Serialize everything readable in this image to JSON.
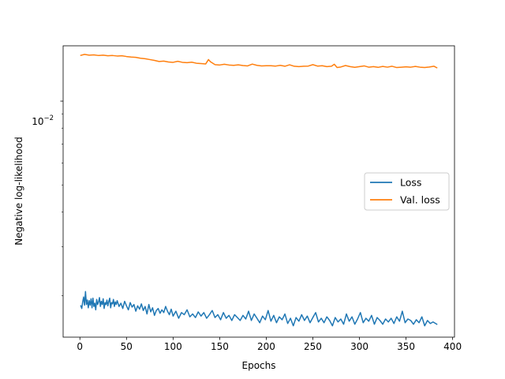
{
  "chart_data": {
    "type": "line",
    "xlabel": "Epochs",
    "ylabel": "Negative log-likelihood",
    "yscale": "log",
    "xlim": [
      -18,
      402
    ],
    "ylim": [
      0.00142,
      0.0158
    ],
    "x_ticks": [
      0,
      50,
      100,
      150,
      200,
      250,
      300,
      350,
      400
    ],
    "x_tick_labels": [
      "0",
      "50",
      "100",
      "150",
      "200",
      "250",
      "300",
      "350",
      "400"
    ],
    "y_ticks": [
      0.01
    ],
    "y_tick_labels": {
      "base": "10",
      "exponent": "−2"
    },
    "legend": {
      "position": "center-right",
      "entries": [
        "Loss",
        "Val. loss"
      ]
    },
    "grid": false,
    "series": [
      {
        "name": "Loss",
        "color": "#1f77b4",
        "x": [
          1,
          2,
          3,
          4,
          5,
          6,
          7,
          8,
          9,
          10,
          11,
          12,
          13,
          14,
          15,
          16,
          17,
          18,
          19,
          20,
          21,
          22,
          23,
          24,
          25,
          26,
          27,
          28,
          29,
          30,
          31,
          32,
          33,
          34,
          35,
          36,
          37,
          38,
          39,
          40,
          42,
          44,
          46,
          48,
          50,
          52,
          54,
          56,
          58,
          60,
          62,
          64,
          66,
          68,
          70,
          72,
          74,
          76,
          78,
          80,
          82,
          84,
          86,
          88,
          90,
          92,
          94,
          96,
          98,
          100,
          103,
          106,
          109,
          112,
          115,
          118,
          121,
          124,
          127,
          130,
          133,
          136,
          139,
          142,
          145,
          148,
          151,
          154,
          157,
          160,
          163,
          166,
          169,
          172,
          175,
          178,
          181,
          184,
          187,
          190,
          193,
          196,
          199,
          202,
          205,
          208,
          211,
          214,
          217,
          220,
          223,
          226,
          229,
          232,
          235,
          238,
          241,
          244,
          247,
          250,
          253,
          256,
          259,
          262,
          265,
          268,
          271,
          274,
          277,
          280,
          283,
          286,
          289,
          292,
          295,
          298,
          301,
          304,
          307,
          310,
          313,
          316,
          319,
          322,
          325,
          328,
          331,
          334,
          337,
          340,
          343,
          346,
          349,
          352,
          355,
          358,
          361,
          364,
          367,
          370,
          373,
          376,
          379,
          383
        ],
        "y": [
          0.00184,
          0.0018,
          0.0019,
          0.00198,
          0.00185,
          0.00207,
          0.00186,
          0.00193,
          0.00181,
          0.00192,
          0.00185,
          0.00195,
          0.00181,
          0.00196,
          0.00183,
          0.00188,
          0.00178,
          0.00194,
          0.00186,
          0.0019,
          0.00197,
          0.00183,
          0.00191,
          0.00186,
          0.00195,
          0.0018,
          0.00189,
          0.00186,
          0.00193,
          0.00184,
          0.00191,
          0.00196,
          0.00181,
          0.00189,
          0.00187,
          0.00194,
          0.00183,
          0.0019,
          0.00186,
          0.00192,
          0.00183,
          0.00188,
          0.0018,
          0.00191,
          0.00184,
          0.00178,
          0.00189,
          0.00182,
          0.00186,
          0.00176,
          0.00184,
          0.00179,
          0.00187,
          0.00177,
          0.00183,
          0.00172,
          0.00186,
          0.00175,
          0.00181,
          0.0017,
          0.00177,
          0.0018,
          0.00173,
          0.00178,
          0.00174,
          0.00183,
          0.00176,
          0.00171,
          0.00179,
          0.00169,
          0.00176,
          0.00166,
          0.00174,
          0.00171,
          0.00178,
          0.00168,
          0.00172,
          0.00167,
          0.00175,
          0.00169,
          0.00174,
          0.00166,
          0.00171,
          0.00177,
          0.00167,
          0.00171,
          0.00164,
          0.00174,
          0.00166,
          0.0017,
          0.00163,
          0.00171,
          0.00167,
          0.00163,
          0.0017,
          0.00165,
          0.00176,
          0.00163,
          0.00172,
          0.00166,
          0.0016,
          0.00169,
          0.00164,
          0.00177,
          0.00162,
          0.0017,
          0.0016,
          0.00168,
          0.00164,
          0.00172,
          0.00159,
          0.00166,
          0.00156,
          0.00167,
          0.00162,
          0.00171,
          0.00163,
          0.00169,
          0.0016,
          0.00167,
          0.00174,
          0.00161,
          0.00166,
          0.0016,
          0.00168,
          0.00163,
          0.00156,
          0.00167,
          0.00161,
          0.00165,
          0.00158,
          0.00172,
          0.00162,
          0.00168,
          0.00158,
          0.00165,
          0.00174,
          0.0016,
          0.00166,
          0.00162,
          0.0017,
          0.00158,
          0.00167,
          0.00163,
          0.00158,
          0.00165,
          0.00161,
          0.00166,
          0.00159,
          0.00168,
          0.00162,
          0.00176,
          0.0016,
          0.00165,
          0.00163,
          0.00158,
          0.00164,
          0.0016,
          0.00168,
          0.00156,
          0.00163,
          0.00159,
          0.00161,
          0.00158
        ],
        "line_width": 1.5
      },
      {
        "name": "Val. loss",
        "color": "#ff7f0e",
        "x": [
          1,
          5,
          10,
          15,
          20,
          25,
          30,
          35,
          40,
          45,
          50,
          55,
          60,
          65,
          70,
          75,
          80,
          85,
          90,
          95,
          100,
          105,
          110,
          115,
          120,
          125,
          130,
          135,
          138,
          140,
          145,
          150,
          155,
          160,
          165,
          170,
          175,
          180,
          185,
          190,
          195,
          200,
          205,
          210,
          215,
          220,
          225,
          230,
          235,
          240,
          245,
          250,
          255,
          260,
          265,
          270,
          273,
          276,
          280,
          285,
          290,
          295,
          300,
          305,
          310,
          315,
          320,
          325,
          330,
          335,
          340,
          345,
          350,
          355,
          360,
          365,
          370,
          375,
          380,
          383
        ],
        "y": [
          0.0146,
          0.01472,
          0.01462,
          0.01466,
          0.01458,
          0.01462,
          0.01455,
          0.01458,
          0.01452,
          0.01455,
          0.01446,
          0.0144,
          0.01436,
          0.01426,
          0.0142,
          0.0141,
          0.014,
          0.01388,
          0.01392,
          0.01382,
          0.01378,
          0.0139,
          0.01378,
          0.01374,
          0.0138,
          0.01368,
          0.01364,
          0.0136,
          0.0141,
          0.01385,
          0.01352,
          0.01348,
          0.01356,
          0.01348,
          0.01344,
          0.0135,
          0.01342,
          0.01338,
          0.01358,
          0.01344,
          0.01338,
          0.0134,
          0.0134,
          0.01336,
          0.01344,
          0.01334,
          0.0135,
          0.01334,
          0.0133,
          0.01334,
          0.01336,
          0.01352,
          0.01336,
          0.0134,
          0.0133,
          0.01334,
          0.01356,
          0.0132,
          0.01326,
          0.01342,
          0.0133,
          0.01322,
          0.0133,
          0.01338,
          0.01324,
          0.0133,
          0.01322,
          0.01332,
          0.01324,
          0.01334,
          0.0132,
          0.01324,
          0.01328,
          0.01324,
          0.01332,
          0.01324,
          0.0132,
          0.01326,
          0.01334,
          0.01318
        ],
        "line_width": 1.5
      }
    ]
  }
}
